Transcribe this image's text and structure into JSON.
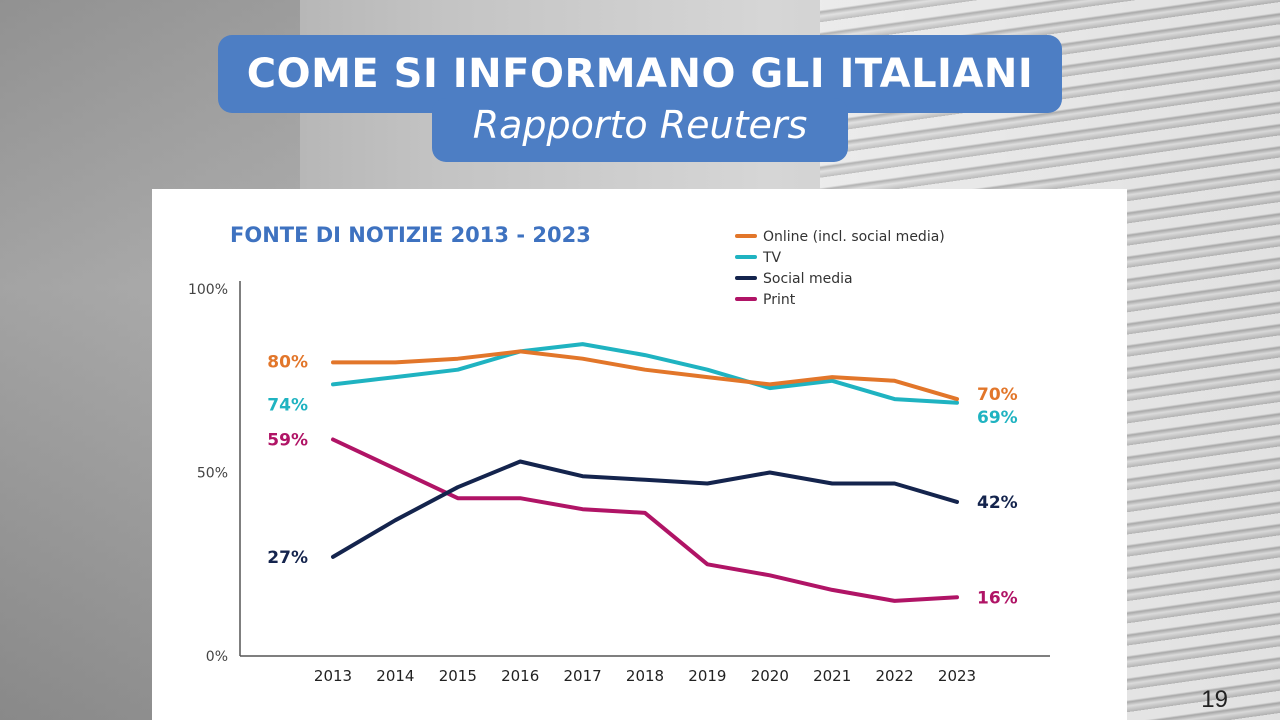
{
  "slide": {
    "title": "COME SI INFORMANO GLI ITALIANI",
    "subtitle": "Rapporto Reuters",
    "page_number": "19"
  },
  "chart_data": {
    "type": "line",
    "title": "FONTE DI NOTIZIE 2013 - 2023",
    "xlabel": "",
    "ylabel": "",
    "x": [
      "2013",
      "2014",
      "2015",
      "2016",
      "2017",
      "2018",
      "2019",
      "2020",
      "2021",
      "2022",
      "2023"
    ],
    "ylim": [
      0,
      100
    ],
    "y_ticks": [
      "0%",
      "50%",
      "100%"
    ],
    "legend_position": "top-right",
    "grid": false,
    "series": [
      {
        "name": "Online (incl. social media)",
        "color": "#e2762a",
        "values": [
          80,
          80,
          81,
          83,
          81,
          78,
          76,
          74,
          76,
          75,
          70
        ],
        "start_label": "80%",
        "end_label": "70%"
      },
      {
        "name": "TV",
        "color": "#1fb3c1",
        "values": [
          74,
          76,
          78,
          83,
          85,
          82,
          78,
          73,
          75,
          70,
          69
        ],
        "start_label": "74%",
        "end_label": "69%"
      },
      {
        "name": "Social media",
        "color": "#14244d",
        "values": [
          27,
          37,
          46,
          53,
          49,
          48,
          47,
          50,
          47,
          47,
          42
        ],
        "start_label": "27%",
        "end_label": "42%"
      },
      {
        "name": "Print",
        "color": "#b01466",
        "values": [
          59,
          51,
          43,
          43,
          40,
          39,
          25,
          22,
          18,
          15,
          16
        ],
        "start_label": "59%",
        "end_label": "16%"
      }
    ]
  }
}
